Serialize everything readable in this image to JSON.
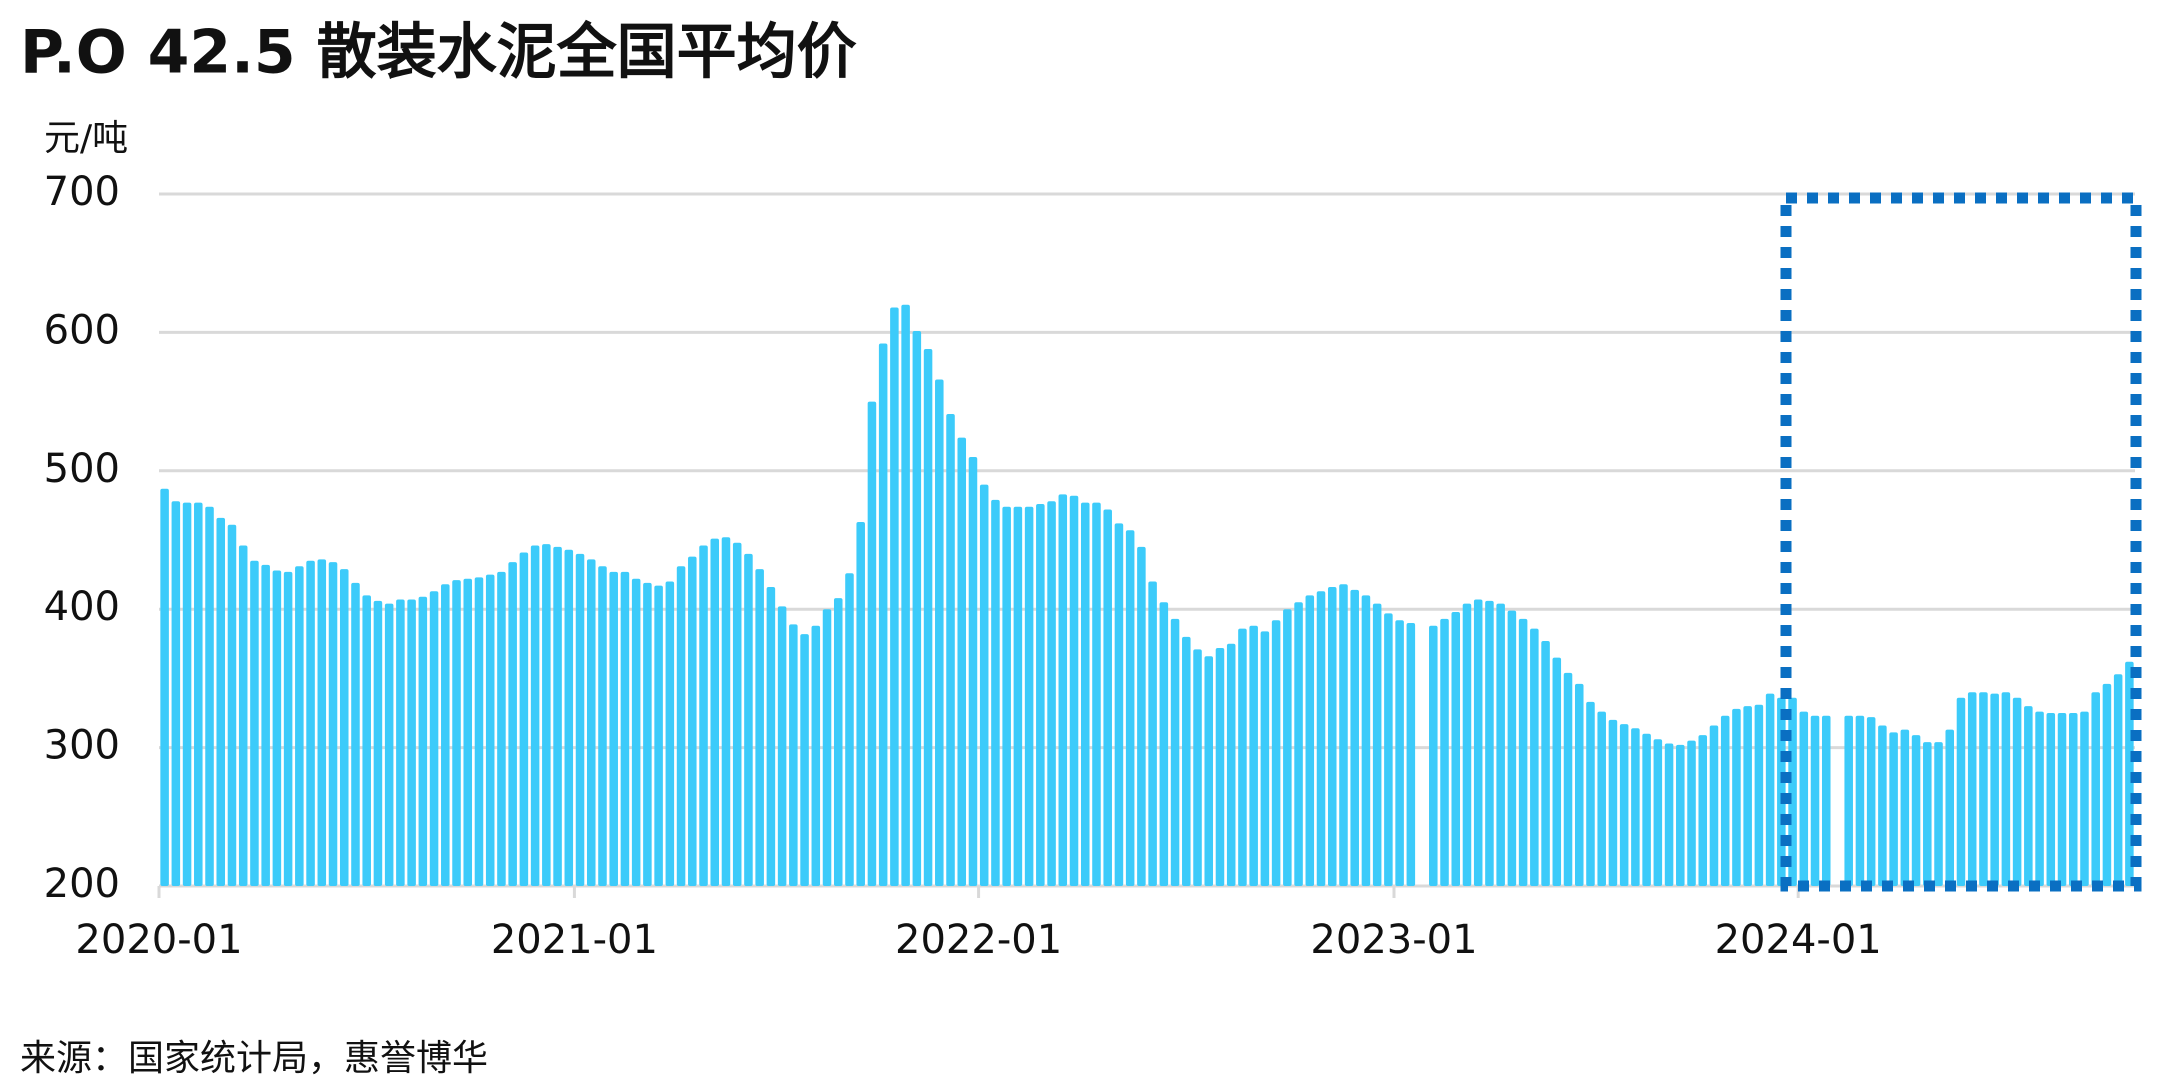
{
  "chart_data": {
    "type": "bar",
    "title": "P.O 42.5 散装水泥全国平均价",
    "y_label": "元/吨",
    "source": "来源：国家统计局，惠誉博华",
    "categories": [
      "2020-01",
      null,
      null,
      null,
      null,
      null,
      null,
      null,
      null,
      null,
      null,
      null,
      null,
      null,
      null,
      null,
      null,
      null,
      null,
      null,
      null,
      null,
      null,
      null,
      null,
      null,
      null,
      null,
      null,
      null,
      null,
      null,
      null,
      null,
      null,
      null,
      null,
      "2021-01",
      null,
      null,
      null,
      null,
      null,
      null,
      null,
      null,
      null,
      null,
      null,
      null,
      null,
      null,
      null,
      null,
      null,
      null,
      null,
      null,
      null,
      null,
      null,
      null,
      null,
      null,
      null,
      null,
      null,
      null,
      null,
      null,
      null,
      null,
      null,
      "2022-01",
      null,
      null,
      null,
      null,
      null,
      null,
      null,
      null,
      null,
      null,
      null,
      null,
      null,
      null,
      null,
      null,
      null,
      null,
      null,
      null,
      null,
      null,
      null,
      null,
      null,
      null,
      null,
      null,
      null,
      null,
      null,
      null,
      null,
      null,
      null,
      null,
      "2023-01",
      null,
      null,
      null,
      null,
      null,
      null,
      null,
      null,
      null,
      null,
      null,
      null,
      null,
      null,
      null,
      null,
      null,
      null,
      null,
      null,
      null,
      null,
      null,
      null,
      null,
      null,
      null,
      null,
      null,
      null,
      null,
      null,
      null,
      null,
      null,
      "2024-01",
      null,
      null,
      null,
      null,
      null,
      null,
      null,
      null,
      null,
      null,
      null,
      null,
      null,
      null,
      null,
      null,
      null,
      null,
      null,
      null,
      null,
      null,
      null,
      null,
      null,
      null,
      null,
      null,
      null
    ],
    "values": [
      487,
      478,
      477,
      477,
      474,
      466,
      461,
      446,
      435,
      432,
      428,
      427,
      431,
      435,
      436,
      434,
      429,
      419,
      410,
      406,
      404,
      407,
      407,
      409,
      413,
      418,
      421,
      422,
      423,
      425,
      427,
      434,
      441,
      446,
      447,
      445,
      443,
      440,
      436,
      431,
      427,
      427,
      422,
      419,
      417,
      420,
      431,
      438,
      446,
      451,
      452,
      448,
      440,
      429,
      416,
      402,
      389,
      382,
      388,
      400,
      408,
      426,
      463,
      550,
      592,
      618,
      620,
      601,
      588,
      566,
      541,
      524,
      510,
      490,
      479,
      474,
      474,
      474,
      476,
      478,
      483,
      482,
      477,
      477,
      472,
      462,
      457,
      445,
      420,
      405,
      393,
      380,
      371,
      366,
      372,
      375,
      386,
      388,
      384,
      392,
      400,
      405,
      410,
      413,
      416,
      418,
      414,
      410,
      404,
      397,
      392,
      390,
      null,
      388,
      393,
      398,
      404,
      407,
      406,
      404,
      399,
      393,
      386,
      377,
      365,
      354,
      346,
      333,
      326,
      320,
      317,
      314,
      310,
      306,
      303,
      302,
      305,
      309,
      316,
      323,
      328,
      330,
      331,
      339,
      336,
      336,
      326,
      323,
      323,
      null,
      323,
      323,
      322,
      316,
      311,
      313,
      309,
      304,
      304,
      313,
      336,
      340,
      340,
      339,
      340,
      336,
      330,
      326,
      325,
      325,
      325,
      326,
      340,
      346,
      353,
      362
    ],
    "color": "#3ccbfa",
    "ylim": [
      200,
      700
    ],
    "yticks": [
      200,
      300,
      400,
      500,
      600,
      700
    ],
    "grid": true
  }
}
